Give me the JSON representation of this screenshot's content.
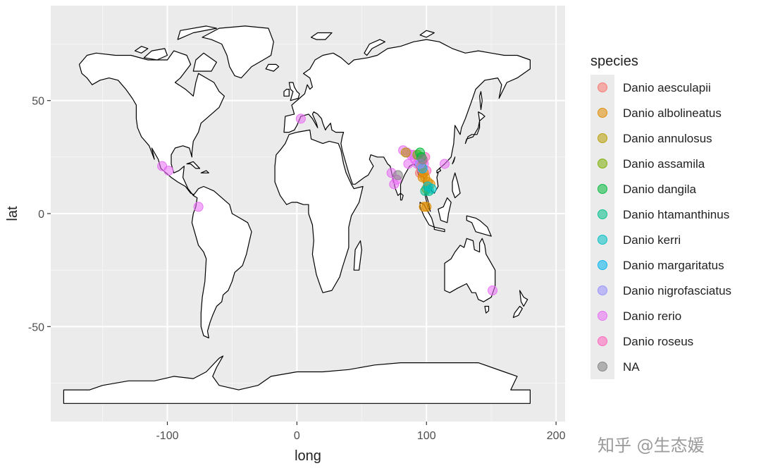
{
  "watermark": "知乎 @生态媛",
  "chart_data": {
    "type": "scatter",
    "xlabel": "long",
    "ylabel": "lat",
    "xlim": [
      -190,
      207
    ],
    "ylim": [
      -92,
      92
    ],
    "x_ticks": [
      -100,
      0,
      100,
      200
    ],
    "x_tick_labels": [
      "-100",
      "0",
      "100",
      "200"
    ],
    "y_ticks": [
      -50,
      0,
      50
    ],
    "y_tick_labels": [
      "-50",
      "0",
      "50"
    ],
    "grid": true,
    "background": "#ebebeb",
    "legend": {
      "title": "species",
      "placement": "right",
      "entries": [
        {
          "name": "Danio aesculapii",
          "color": "#f8766d"
        },
        {
          "name": "Danio albolineatus",
          "color": "#de8c00"
        },
        {
          "name": "Danio annulosus",
          "color": "#b79f00"
        },
        {
          "name": "Danio assamila",
          "color": "#7cae00"
        },
        {
          "name": "Danio dangila",
          "color": "#00ba38"
        },
        {
          "name": "Danio htamanthinus",
          "color": "#00c08b"
        },
        {
          "name": "Danio kerri",
          "color": "#00bfc4"
        },
        {
          "name": "Danio margaritatus",
          "color": "#00b4f0"
        },
        {
          "name": "Danio nigrofasciatus",
          "color": "#9590ff"
        },
        {
          "name": "Danio rerio",
          "color": "#e76bf3"
        },
        {
          "name": "Danio roseus",
          "color": "#ff62bc"
        },
        {
          "name": "NA",
          "color": "#7f7f7f"
        }
      ]
    },
    "points": [
      {
        "species": "Danio rerio",
        "x": -104,
        "y": 21
      },
      {
        "species": "Danio rerio",
        "x": -99,
        "y": 19
      },
      {
        "species": "Danio rerio",
        "x": -76,
        "y": 3
      },
      {
        "species": "Danio rerio",
        "x": 3,
        "y": 42
      },
      {
        "species": "Danio rerio",
        "x": 151,
        "y": -34
      },
      {
        "species": "Danio rerio",
        "x": 114,
        "y": 22
      },
      {
        "species": "Danio rerio",
        "x": 73,
        "y": 18
      },
      {
        "species": "Danio rerio",
        "x": 75,
        "y": 13
      },
      {
        "species": "Danio rerio",
        "x": 77,
        "y": 15
      },
      {
        "species": "Danio rerio",
        "x": 82,
        "y": 28
      },
      {
        "species": "Danio rerio",
        "x": 85,
        "y": 27
      },
      {
        "species": "Danio rerio",
        "x": 88,
        "y": 26
      },
      {
        "species": "Danio rerio",
        "x": 91,
        "y": 24
      },
      {
        "species": "Danio rerio",
        "x": 93,
        "y": 22
      },
      {
        "species": "Danio rerio",
        "x": 96,
        "y": 20
      },
      {
        "species": "Danio rerio",
        "x": 98,
        "y": 22
      },
      {
        "species": "Danio rerio",
        "x": 86,
        "y": 22
      },
      {
        "species": "Danio rerio",
        "x": 90,
        "y": 26
      },
      {
        "species": "Danio rerio",
        "x": 94,
        "y": 24
      },
      {
        "species": "Danio roseus",
        "x": 97,
        "y": 23
      },
      {
        "species": "Danio roseus",
        "x": 99,
        "y": 25
      },
      {
        "species": "Danio roseus",
        "x": 100,
        "y": 19
      },
      {
        "species": "Danio aesculapii",
        "x": 95,
        "y": 18
      },
      {
        "species": "Danio albolineatus",
        "x": 98,
        "y": 3
      },
      {
        "species": "Danio albolineatus",
        "x": 100,
        "y": 3
      },
      {
        "species": "Danio albolineatus",
        "x": 101,
        "y": 14
      },
      {
        "species": "Danio albolineatus",
        "x": 99,
        "y": 16
      },
      {
        "species": "Danio albolineatus",
        "x": 103,
        "y": 13
      },
      {
        "species": "Danio albolineatus",
        "x": 100,
        "y": 11
      },
      {
        "species": "Danio albolineatus",
        "x": 98,
        "y": 18
      },
      {
        "species": "Danio albolineatus",
        "x": 96,
        "y": 21
      },
      {
        "species": "Danio albolineatus",
        "x": 97,
        "y": 16
      },
      {
        "species": "Danio annulosus",
        "x": 84,
        "y": 27
      },
      {
        "species": "Danio assamila",
        "x": 93,
        "y": 26
      },
      {
        "species": "Danio dangila",
        "x": 96,
        "y": 25
      },
      {
        "species": "Danio dangila",
        "x": 95,
        "y": 27
      },
      {
        "species": "Danio htamanthinus",
        "x": 99,
        "y": 10
      },
      {
        "species": "Danio htamanthinus",
        "x": 102,
        "y": 10
      },
      {
        "species": "Danio kerri",
        "x": 104,
        "y": 11
      },
      {
        "species": "Danio kerri",
        "x": 101,
        "y": 12
      },
      {
        "species": "Danio margaritatus",
        "x": 97,
        "y": 20
      },
      {
        "species": "Danio nigrofasciatus",
        "x": 95,
        "y": 22
      },
      {
        "species": "NA",
        "x": 78,
        "y": 17
      },
      {
        "species": "NA",
        "x": 97,
        "y": 24
      }
    ]
  }
}
